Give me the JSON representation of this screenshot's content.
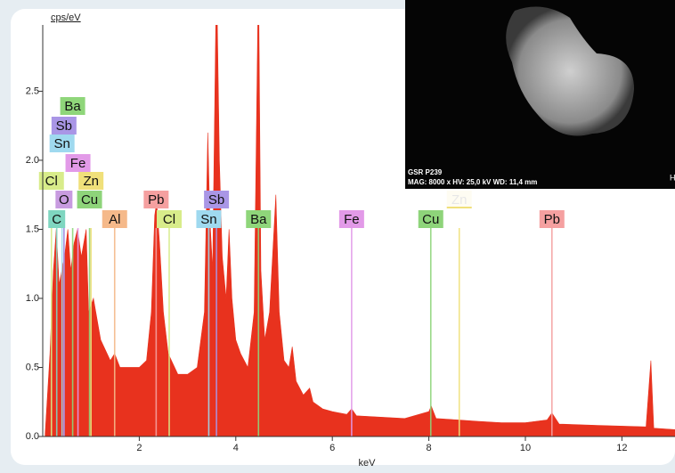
{
  "chart_data": {
    "type": "area",
    "y_label": "cps/eV",
    "x_label": "keV",
    "color": "#e8321e",
    "xlim": [
      0,
      13.1
    ],
    "ylim": [
      0,
      2.98
    ],
    "xticks": [
      2,
      4,
      6,
      8,
      10,
      12
    ],
    "yticks": [
      {
        "value": 0,
        "label": "0.0"
      },
      {
        "value": 0.5,
        "label": "0.5"
      },
      {
        "value": 1,
        "label": "1.0"
      },
      {
        "value": 1.5,
        "label": "1.5"
      },
      {
        "value": 2,
        "label": "2.0"
      },
      {
        "value": 2.5,
        "label": "2.5"
      }
    ],
    "x": [
      0.05,
      0.15,
      0.22,
      0.28,
      0.34,
      0.45,
      0.52,
      0.58,
      0.65,
      0.72,
      0.8,
      0.9,
      0.95,
      1.05,
      1.2,
      1.4,
      1.49,
      1.6,
      1.8,
      2.0,
      2.15,
      2.25,
      2.32,
      2.36,
      2.42,
      2.5,
      2.6,
      2.8,
      3.0,
      3.2,
      3.35,
      3.42,
      3.46,
      3.52,
      3.6,
      3.66,
      3.72,
      3.8,
      3.86,
      3.92,
      4.0,
      4.1,
      4.25,
      4.38,
      4.47,
      4.52,
      4.6,
      4.7,
      4.83,
      4.9,
      5.0,
      5.1,
      5.17,
      5.25,
      5.4,
      5.53,
      5.6,
      5.8,
      6.0,
      6.3,
      6.4,
      6.5,
      7.0,
      7.5,
      8.0,
      8.05,
      8.15,
      8.6,
      9.0,
      9.5,
      10.0,
      10.45,
      10.55,
      10.7,
      11.5,
      12.5,
      12.6,
      12.66,
      13.1
    ],
    "values": [
      0.02,
      0.6,
      1.2,
      1.5,
      1.1,
      1.3,
      1.5,
      1.2,
      1.4,
      1.5,
      1.3,
      1.5,
      0.9,
      1.0,
      0.7,
      0.55,
      0.6,
      0.5,
      0.5,
      0.5,
      0.55,
      0.9,
      1.6,
      1.7,
      1.4,
      0.9,
      0.6,
      0.45,
      0.45,
      0.5,
      0.9,
      2.2,
      1.6,
      1.2,
      3.4,
      2.0,
      1.3,
      1.0,
      1.5,
      1.0,
      0.7,
      0.6,
      0.5,
      0.9,
      3.4,
      1.2,
      0.7,
      0.9,
      1.75,
      0.9,
      0.55,
      0.5,
      0.65,
      0.4,
      0.3,
      0.35,
      0.25,
      0.2,
      0.18,
      0.16,
      0.2,
      0.15,
      0.14,
      0.13,
      0.18,
      0.22,
      0.13,
      0.12,
      0.11,
      0.1,
      0.1,
      0.12,
      0.17,
      0.09,
      0.08,
      0.07,
      0.55,
      0.06,
      0.05
    ],
    "markers": [
      {
        "label": "C",
        "energy": 0.29,
        "color": "#7fd6c0"
      },
      {
        "label": "O",
        "energy": 0.44,
        "color": "#c89be0"
      },
      {
        "label": "Cu",
        "energy": 0.97,
        "color": "#8ed47a"
      },
      {
        "label": "Cl",
        "energy": 0.18,
        "color": "#d8ec8a"
      },
      {
        "label": "Zn",
        "energy": 1.0,
        "color": "#f0e07a"
      },
      {
        "label": "Fe",
        "energy": 0.73,
        "color": "#e29ae8"
      },
      {
        "label": "Sn",
        "energy": 0.4,
        "color": "#9fd9ef"
      },
      {
        "label": "Sb",
        "energy": 0.44,
        "color": "#a996e6"
      },
      {
        "label": "Ba",
        "energy": 0.62,
        "color": "#8fd67a"
      },
      {
        "label": "Al",
        "energy": 1.49,
        "color": "#f5b98a"
      },
      {
        "label": "Pb",
        "energy": 2.35,
        "color": "#f5a0a0"
      },
      {
        "label": "Cl",
        "energy": 2.62,
        "color": "#d8ec8a"
      },
      {
        "label": "Sn",
        "energy": 3.44,
        "color": "#9fd9ef"
      },
      {
        "label": "Sb",
        "energy": 3.6,
        "color": "#a996e6"
      },
      {
        "label": "Ba",
        "energy": 4.47,
        "color": "#8fd67a"
      },
      {
        "label": "Fe",
        "energy": 6.4,
        "color": "#e29ae8"
      },
      {
        "label": "Cu",
        "energy": 8.04,
        "color": "#8ed47a"
      },
      {
        "label": "Zn",
        "energy": 8.63,
        "color": "#f0e07a"
      },
      {
        "label": "Pb",
        "energy": 10.55,
        "color": "#f5a0a0"
      }
    ]
  },
  "inset": {
    "sample": "GSR P239",
    "settings": "MAG: 8000 x  HV: 25,0 kV  WD: 11,4 mm",
    "corner": "H"
  }
}
